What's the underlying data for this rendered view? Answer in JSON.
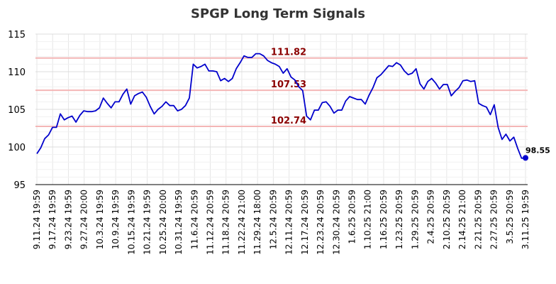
{
  "chart_data": {
    "type": "line",
    "title": "SPGP Long Term Signals",
    "xlabel": "",
    "ylabel": "",
    "ylim": [
      95,
      115
    ],
    "y_ticks": [
      95,
      100,
      105,
      110,
      115
    ],
    "x_tick_labels": [
      "9.11.24 19:59",
      "9.17.24 19:59",
      "9.23.24 19:59",
      "9.27.24 20:00",
      "10.3.24 19:59",
      "10.9.24 19:59",
      "10.15.24 19:59",
      "10.21.24 19:59",
      "10.25.24 20:00",
      "10.31.24 19:59",
      "11.6.24 20:59",
      "11.12.24 20:59",
      "11.18.24 20:59",
      "11.22.24 21:00",
      "11.29.24 18:00",
      "12.5.24 20:59",
      "12.11.24 20:59",
      "12.17.24 20:59",
      "12.23.24 20:59",
      "12.30.24 20:59",
      "1.6.25 20:59",
      "1.10.25 21:00",
      "1.16.25 20:59",
      "1.23.25 20:59",
      "1.29.25 20:59",
      "2.4.25 20:59",
      "2.10.25 20:59",
      "2.14.25 21:00",
      "2.21.25 20:59",
      "2.27.25 20:59",
      "3.5.25 20:59",
      "3.11.25 19:59"
    ],
    "grid": true,
    "series_color": "#0000cc",
    "reference_color": "#f4b6b6",
    "reference_label_color": "#8b0000",
    "reference_lines": [
      {
        "value": 111.82,
        "label": "111.82"
      },
      {
        "value": 107.53,
        "label": "107.53"
      },
      {
        "value": 102.74,
        "label": "102.74"
      }
    ],
    "last_value_label": "98.55",
    "series": [
      {
        "values": [
          99.1,
          99.9,
          101.1,
          101.6,
          102.6,
          102.6,
          104.4,
          103.6,
          103.9,
          104.1,
          103.3,
          104.2,
          104.8,
          104.7,
          104.7,
          104.8,
          105.2,
          106.5,
          105.8,
          105.2,
          106.0,
          106.0,
          107.0,
          107.7,
          105.7,
          106.8,
          107.1,
          107.3,
          106.6,
          105.4,
          104.4,
          105.0,
          105.4,
          106.0,
          105.5,
          105.5,
          104.8,
          105.0,
          105.5,
          106.5,
          111.0,
          110.5,
          110.7,
          111.0,
          110.1,
          110.1,
          110.0,
          108.8,
          109.1,
          108.7,
          109.1,
          110.4,
          111.2,
          112.1,
          111.9,
          111.9,
          112.4,
          112.4,
          112.1,
          111.5,
          111.2,
          111.0,
          110.7,
          109.8,
          110.4,
          109.3,
          108.9,
          108.0,
          107.5,
          104.1,
          103.6,
          104.9,
          104.9,
          105.9,
          106.0,
          105.4,
          104.5,
          104.9,
          104.9,
          106.1,
          106.7,
          106.5,
          106.3,
          106.3,
          105.7,
          106.9,
          107.9,
          109.2,
          109.6,
          110.2,
          110.8,
          110.7,
          111.2,
          110.9,
          110.1,
          109.6,
          109.8,
          110.4,
          108.4,
          107.7,
          108.7,
          109.1,
          108.5,
          107.7,
          108.3,
          108.3,
          106.8,
          107.4,
          107.9,
          108.8,
          108.9,
          108.7,
          108.8,
          105.8,
          105.5,
          105.3,
          104.3,
          105.6,
          102.6,
          101.0,
          101.7,
          100.8,
          101.3,
          99.8,
          98.5,
          98.55
        ]
      }
    ]
  }
}
